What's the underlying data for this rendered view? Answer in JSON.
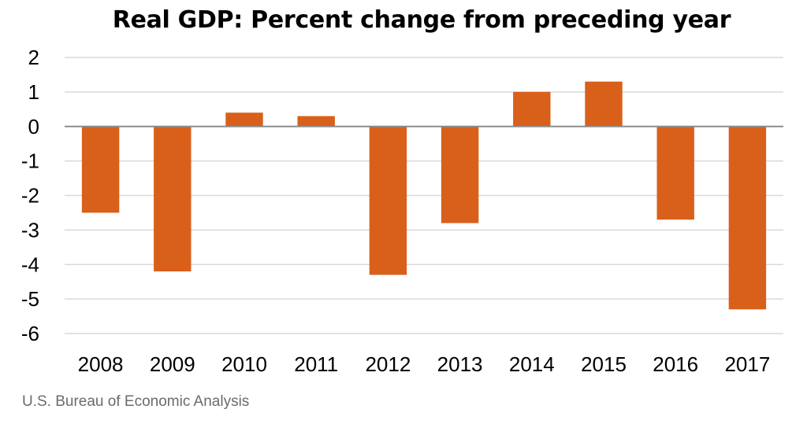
{
  "chart_data": {
    "type": "bar",
    "title": "Real GDP:  Percent change from preceding year",
    "categories": [
      "2008",
      "2009",
      "2010",
      "2011",
      "2012",
      "2013",
      "2014",
      "2015",
      "2016",
      "2017"
    ],
    "values": [
      -2.5,
      -4.2,
      0.4,
      0.3,
      -4.3,
      -2.8,
      1.0,
      1.3,
      -2.7,
      -5.3
    ],
    "ylim": [
      -6,
      2
    ],
    "yticks": [
      "2",
      "1",
      "0",
      "-1",
      "-2",
      "-3",
      "-4",
      "-5",
      "-6"
    ],
    "xlabel": "",
    "ylabel": "",
    "grid": true,
    "bar_color": "#d9601b",
    "grid_color": "#d9d9d9",
    "zero_line_color": "#8c8c8c"
  },
  "source": "U.S. Bureau of Economic Analysis"
}
